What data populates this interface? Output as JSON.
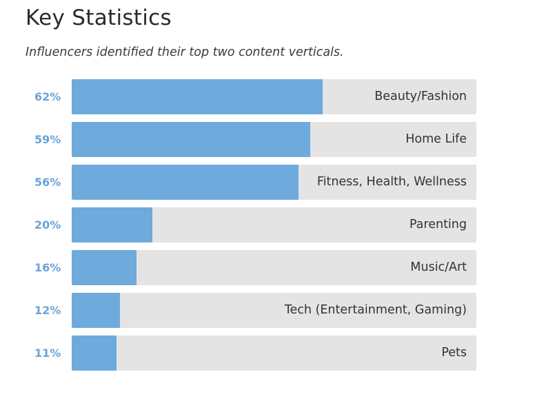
{
  "header": {
    "title": "Key Statistics",
    "subtitle": "Influencers identified their top two content verticals."
  },
  "colors": {
    "bar_fill": "#6eaadc",
    "track": "#e4e4e5",
    "percent_text": "#6ba3d6",
    "label_text": "#333333"
  },
  "chart_data": {
    "type": "bar",
    "orientation": "horizontal",
    "title": "Key Statistics",
    "subtitle": "Influencers identified their top two content verticals.",
    "categories": [
      "Beauty/Fashion",
      "Home Life",
      "Fitness, Health, Wellness",
      "Parenting",
      "Music/Art",
      "Tech (Entertainment, Gaming)",
      "Pets"
    ],
    "values": [
      62,
      59,
      56,
      20,
      16,
      12,
      11
    ],
    "value_labels": [
      "62%",
      "59%",
      "56%",
      "20%",
      "16%",
      "12%",
      "11%"
    ],
    "unit": "%",
    "xlim": [
      0,
      100
    ],
    "xlabel": "",
    "ylabel": "",
    "grid": false
  }
}
